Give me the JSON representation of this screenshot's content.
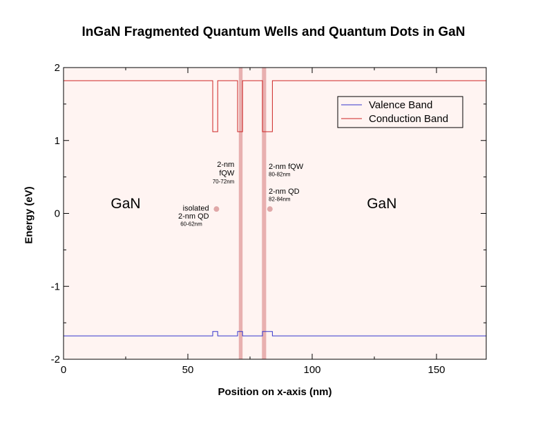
{
  "chart_data": {
    "type": "line",
    "title": "InGaN Fragmented Quantum Wells and Quantum Dots in GaN",
    "xlabel": "Position on x-axis (nm)",
    "ylabel": "Energy (eV)",
    "xlim": [
      0,
      170
    ],
    "ylim": [
      -2,
      2
    ],
    "xticks": [
      0,
      50,
      100,
      150
    ],
    "yticks": [
      -2,
      -1,
      0,
      1,
      2
    ],
    "grid": false,
    "legend_position": "top-right",
    "background_color": "#fff4f2",
    "series": [
      {
        "name": "Valence Band",
        "color": "#3333cc",
        "points": [
          [
            0,
            -1.68
          ],
          [
            60,
            -1.68
          ],
          [
            60,
            -1.62
          ],
          [
            62,
            -1.62
          ],
          [
            62,
            -1.68
          ],
          [
            70,
            -1.68
          ],
          [
            70,
            -1.62
          ],
          [
            72,
            -1.62
          ],
          [
            72,
            -1.68
          ],
          [
            80,
            -1.68
          ],
          [
            80,
            -1.62
          ],
          [
            84,
            -1.62
          ],
          [
            84,
            -1.68
          ],
          [
            170,
            -1.68
          ]
        ]
      },
      {
        "name": "Conduction Band",
        "color": "#cc2222",
        "points": [
          [
            0,
            1.82
          ],
          [
            60,
            1.82
          ],
          [
            60,
            1.12
          ],
          [
            62,
            1.12
          ],
          [
            62,
            1.82
          ],
          [
            70,
            1.82
          ],
          [
            70,
            1.12
          ],
          [
            72,
            1.12
          ],
          [
            72,
            1.82
          ],
          [
            80,
            1.82
          ],
          [
            80,
            1.12
          ],
          [
            84,
            1.12
          ],
          [
            84,
            1.82
          ],
          [
            170,
            1.82
          ]
        ]
      }
    ],
    "highlight_bands": [
      {
        "x0": 70.5,
        "x1": 72.0,
        "color": "#e8b0b0"
      },
      {
        "x0": 79.8,
        "x1": 81.5,
        "color": "#e8b0b0"
      }
    ],
    "markers": [
      {
        "x": 61.5,
        "y": 0.06,
        "color": "#e0a8a8"
      },
      {
        "x": 83.0,
        "y": 0.06,
        "color": "#e0a8a8"
      }
    ],
    "annotations": [
      {
        "text": "GaN",
        "x": 25,
        "y": 0.07,
        "size": "large",
        "anchor": "middle"
      },
      {
        "text": "GaN",
        "x": 128,
        "y": 0.07,
        "size": "large",
        "anchor": "middle"
      },
      {
        "text": "isolated",
        "x": 58.5,
        "y": 0.04,
        "size": "small",
        "anchor": "end"
      },
      {
        "text": "2-nm QD",
        "x": 58.5,
        "y": -0.07,
        "size": "small",
        "anchor": "end"
      },
      {
        "text": "60-62nm",
        "x": 47,
        "y": -0.17,
        "size": "tiny",
        "anchor": "start"
      },
      {
        "text": "2-nm",
        "x": 68.7,
        "y": 0.64,
        "size": "small",
        "anchor": "end"
      },
      {
        "text": "fQW",
        "x": 68.7,
        "y": 0.52,
        "size": "small",
        "anchor": "end"
      },
      {
        "text": "70-72nm",
        "x": 68.7,
        "y": 0.41,
        "size": "tiny",
        "anchor": "end"
      },
      {
        "text": "2-nm fQW",
        "x": 82.5,
        "y": 0.61,
        "size": "small",
        "anchor": "start"
      },
      {
        "text": "80-82nm",
        "x": 82.5,
        "y": 0.51,
        "size": "tiny",
        "anchor": "start"
      },
      {
        "text": "2-nm QD",
        "x": 82.5,
        "y": 0.27,
        "size": "small",
        "anchor": "start"
      },
      {
        "text": "82-84nm",
        "x": 82.5,
        "y": 0.17,
        "size": "tiny",
        "anchor": "start"
      }
    ]
  }
}
